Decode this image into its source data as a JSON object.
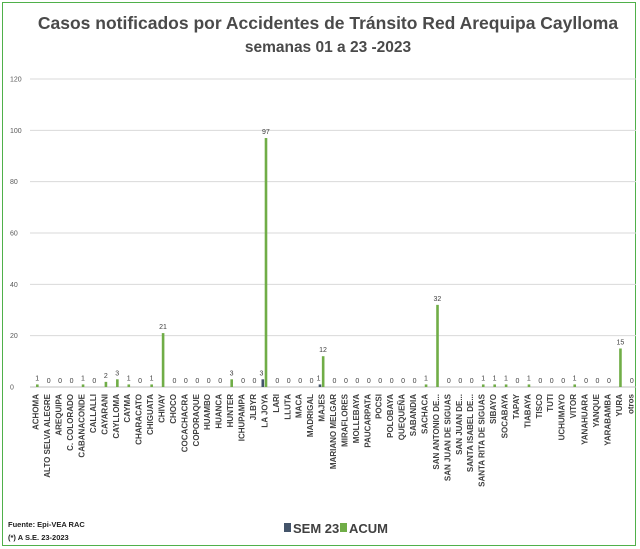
{
  "chart_data": {
    "type": "bar",
    "title": "Casos notificados  por Accidentes de Tránsito Red Arequipa Caylloma",
    "subtitle": "semanas 01 a 23 -2023",
    "ylim": [
      0,
      120
    ],
    "yticks": [
      0,
      20,
      40,
      60,
      80,
      100,
      120
    ],
    "grid": true,
    "legend_position": "bottom",
    "categories": [
      "ACHOMA",
      "ALTO SELVA ALEGRE",
      "AREQUIPA",
      "C. COLORADO",
      "CABANACONDE",
      "CALLALLI",
      "CAYARANI",
      "CAYLLOMA",
      "CAYMA",
      "CHARACATO",
      "CHIGUATA",
      "CHIVAY",
      "CHOCO",
      "COCACHACRA",
      "COPORAQUE",
      "HUAMBO",
      "HUANCA",
      "HUNTER",
      "ICHUPAMPA",
      "JLBYR",
      "LA JOYA",
      "LARI",
      "LLUTA",
      "MACA",
      "MADRIGAL",
      "MAJES",
      "MARIANO MELGAR",
      "MIRAFLORES",
      "MOLLEBAYA",
      "PAUCARPATA",
      "POCSI",
      "POLOBAYA",
      "QUEQUEÑA",
      "SABANDIA",
      "SACHACA",
      "SAN ANTONIO DE...",
      "SAN JUAN DE SIGUAS",
      "SAN JUAN DE...",
      "SANTA ISABEL DE...",
      "SANTA RITA DE SIGUAS",
      "SIBAYO",
      "SOCABAYA",
      "TAPAY",
      "TIABAYA",
      "TISCO",
      "TUTI",
      "UCHUMAYO",
      "VITOR",
      "YANAHUARA",
      "YANQUE",
      "YARABAMBA",
      "YURA",
      "otros"
    ],
    "series": [
      {
        "name": "SEM 23",
        "color": "#44546a",
        "values": [
          0,
          0,
          0,
          0,
          0,
          0,
          0,
          0,
          0,
          0,
          0,
          0,
          0,
          0,
          0,
          0,
          0,
          0,
          0,
          0,
          3,
          0,
          0,
          0,
          0,
          1,
          0,
          0,
          0,
          0,
          0,
          0,
          0,
          0,
          0,
          0,
          0,
          0,
          0,
          0,
          0,
          0,
          0,
          0,
          0,
          0,
          0,
          0,
          0,
          0,
          0,
          0,
          0
        ]
      },
      {
        "name": "ACUM",
        "color": "#70ad47",
        "values": [
          1,
          0,
          0,
          0,
          1,
          0,
          2,
          3,
          1,
          0,
          1,
          21,
          0,
          0,
          0,
          0,
          0,
          3,
          0,
          0,
          97,
          0,
          0,
          0,
          0,
          12,
          0,
          0,
          0,
          0,
          0,
          0,
          0,
          0,
          1,
          32,
          0,
          0,
          0,
          1,
          1,
          1,
          0,
          1,
          0,
          0,
          0,
          1,
          0,
          0,
          0,
          15,
          0
        ]
      }
    ],
    "data_labels": [
      "1",
      "0",
      "0",
      "0",
      "1",
      "0",
      "2",
      "3",
      "1",
      "0",
      "1",
      "21",
      "0",
      "0",
      "0",
      "0",
      "0",
      "3",
      "0",
      "0",
      "97",
      "0",
      "0",
      "0",
      "0",
      "12",
      "0",
      "0",
      "0",
      "0",
      "0",
      "0",
      "0",
      "0",
      "1",
      "32",
      "0",
      "0",
      "0",
      "1",
      "1",
      "1",
      "0",
      "1",
      "0",
      "0",
      "0",
      "1",
      "0",
      "0",
      "0",
      "15",
      "0"
    ],
    "sem23_labels": {
      "20": "3",
      "25": "1"
    }
  },
  "footer": {
    "source": "Fuente: Epi-VEA RAC",
    "note": "(*) A S.E. 23-2023"
  }
}
